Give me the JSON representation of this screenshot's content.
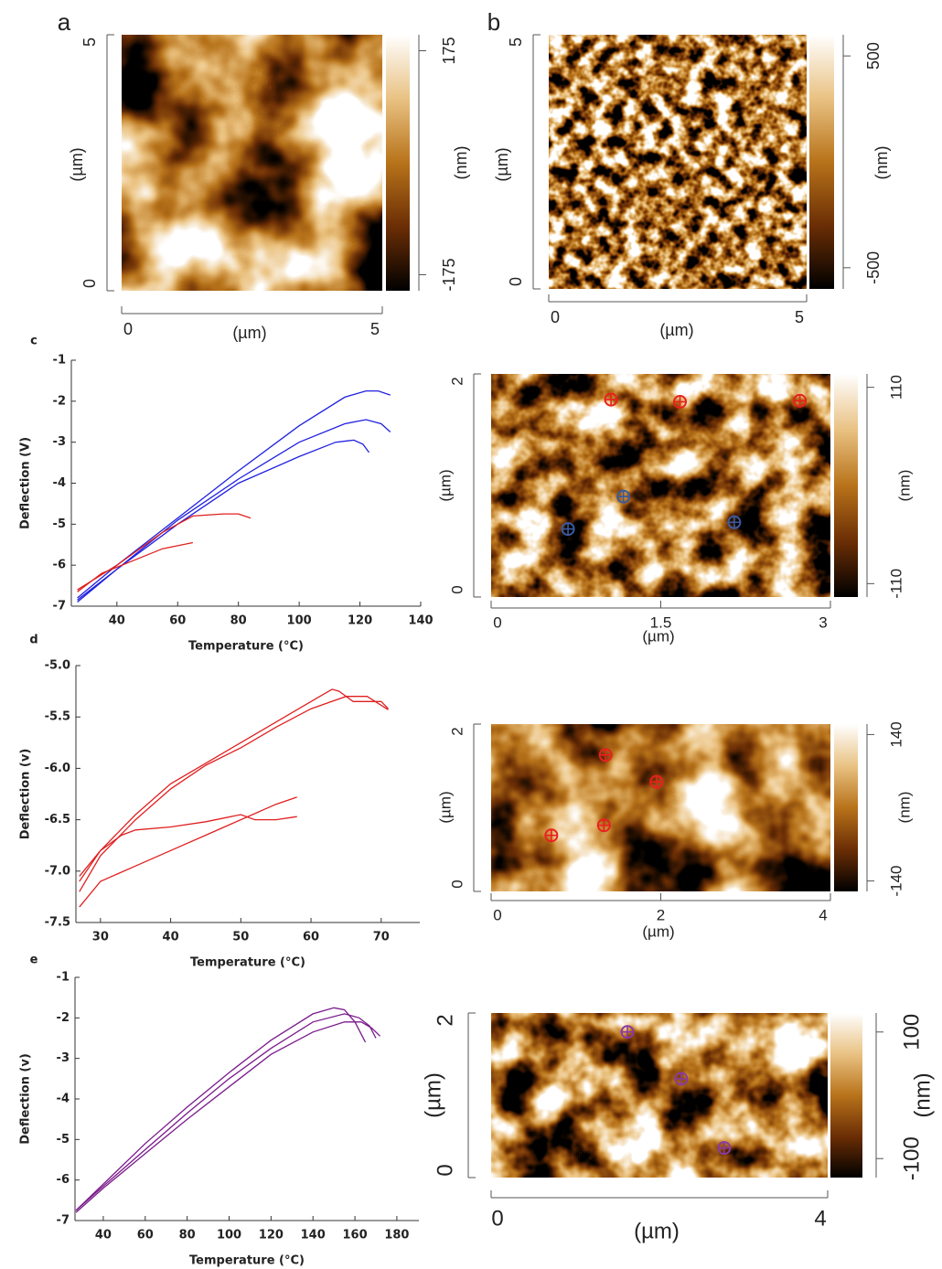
{
  "chart_data": [
    {
      "type": "image",
      "panel": "a",
      "x_label": "(µm)",
      "y_label": "(µm)",
      "xlim": [
        0,
        5
      ],
      "ylim": [
        0,
        5
      ],
      "xticks": [
        0,
        5
      ],
      "yticks": [
        0,
        5
      ],
      "colorbar_label": "(nm)",
      "clim": [
        -200,
        200
      ],
      "cticks": [
        -175,
        175
      ]
    },
    {
      "type": "image",
      "panel": "b",
      "x_label": "(µm)",
      "y_label": "(µm)",
      "xlim": [
        0,
        5
      ],
      "ylim": [
        0,
        5
      ],
      "xticks": [
        0,
        5
      ],
      "yticks": [
        0,
        5
      ],
      "colorbar_label": "(nm)",
      "clim": [
        -600,
        600
      ],
      "cticks": [
        -500,
        500
      ]
    },
    {
      "type": "line",
      "panel": "c",
      "x_label": "Temperature (°C)",
      "y_label": "Deflection (V)",
      "xlim": [
        25,
        140
      ],
      "ylim": [
        -7,
        -1
      ],
      "xticks": [
        40,
        60,
        80,
        100,
        120,
        140
      ],
      "yticks": [
        -1,
        -2,
        -3,
        -4,
        -5,
        -6,
        -7
      ],
      "series": [
        {
          "color": "#2020e0",
          "x": [
            27,
            40,
            60,
            80,
            100,
            115,
            122,
            126,
            130
          ],
          "values": [
            -6.8,
            -6.0,
            -4.85,
            -3.7,
            -2.6,
            -1.9,
            -1.75,
            -1.75,
            -1.85
          ]
        },
        {
          "color": "#2020e0",
          "x": [
            27,
            40,
            60,
            80,
            100,
            115,
            122,
            127,
            130
          ],
          "values": [
            -6.85,
            -6.1,
            -4.9,
            -3.9,
            -3.0,
            -2.55,
            -2.45,
            -2.55,
            -2.75
          ]
        },
        {
          "color": "#2020e0",
          "x": [
            27,
            40,
            60,
            80,
            100,
            112,
            118,
            121,
            123
          ],
          "values": [
            -6.9,
            -6.1,
            -5.0,
            -4.0,
            -3.35,
            -3.0,
            -2.95,
            -3.05,
            -3.25
          ]
        },
        {
          "color": "#e02020",
          "x": [
            27,
            40,
            55,
            65,
            75,
            80,
            84
          ],
          "values": [
            -6.6,
            -6.0,
            -5.2,
            -4.8,
            -4.75,
            -4.75,
            -4.85
          ]
        },
        {
          "color": "#e02020",
          "x": [
            27,
            35,
            45,
            55,
            65
          ],
          "values": [
            -6.65,
            -6.2,
            -5.9,
            -5.6,
            -5.45
          ]
        }
      ]
    },
    {
      "type": "image",
      "x_label": "(µm)",
      "y_label": "(µm)",
      "xlim": [
        0,
        3
      ],
      "ylim": [
        0,
        2
      ],
      "xticks": [
        0,
        1.5,
        3
      ],
      "yticks": [
        0,
        2
      ],
      "colorbar_label": "(nm)",
      "clim": [
        -125,
        125
      ],
      "cticks": [
        -110,
        110
      ],
      "points": [
        {
          "color": "#e82020",
          "x": [
            1.06,
            1.67,
            2.73
          ],
          "y": [
            1.77,
            1.75,
            1.76
          ]
        },
        {
          "color": "#3a5aa0",
          "x": [
            1.17,
            0.68,
            2.15
          ],
          "y": [
            0.9,
            0.61,
            0.67
          ]
        }
      ]
    },
    {
      "type": "line",
      "panel": "d",
      "x_label": "Temperature (°C)",
      "y_label": "Deflection (v)",
      "xlim": [
        26.5,
        75.5
      ],
      "ylim": [
        -7.5,
        -5
      ],
      "xticks": [
        30,
        40,
        50,
        60,
        70
      ],
      "yticks": [
        {
          "value": -5,
          "label": "-5.0"
        },
        -5.5,
        {
          "value": -6,
          "label": "-6.0"
        },
        -6.5,
        {
          "value": -7,
          "label": "-7.0"
        },
        -7.5
      ],
      "series": [
        {
          "color": "#e02020",
          "x": [
            27,
            30,
            35,
            40,
            45,
            50,
            55,
            60,
            63,
            64,
            66,
            68,
            70,
            71
          ],
          "values": [
            -7.05,
            -6.8,
            -6.45,
            -6.15,
            -5.95,
            -5.75,
            -5.55,
            -5.35,
            -5.23,
            -5.25,
            -5.35,
            -5.35,
            -5.35,
            -5.42
          ]
        },
        {
          "color": "#e02020",
          "x": [
            27,
            30,
            35,
            40,
            45,
            50,
            55,
            60,
            65,
            68,
            71
          ],
          "values": [
            -7.2,
            -6.85,
            -6.5,
            -6.2,
            -5.97,
            -5.8,
            -5.6,
            -5.42,
            -5.3,
            -5.3,
            -5.43
          ]
        },
        {
          "color": "#e02020",
          "x": [
            27,
            30,
            33,
            35,
            40,
            45,
            50,
            52,
            55,
            58
          ],
          "values": [
            -7.1,
            -6.8,
            -6.65,
            -6.6,
            -6.57,
            -6.52,
            -6.45,
            -6.5,
            -6.5,
            -6.47
          ]
        },
        {
          "color": "#e02020",
          "x": [
            27,
            30,
            35,
            40,
            45,
            50,
            55,
            58
          ],
          "values": [
            -7.35,
            -7.1,
            -6.95,
            -6.8,
            -6.65,
            -6.5,
            -6.35,
            -6.28
          ]
        }
      ]
    },
    {
      "type": "image",
      "x_label": "(µm)",
      "y_label": "(µm)",
      "xlim": [
        0,
        4
      ],
      "ylim": [
        0,
        2
      ],
      "xticks": [
        0,
        2,
        4
      ],
      "yticks": [
        0,
        2
      ],
      "colorbar_label": "(nm)",
      "clim": [
        -160,
        160
      ],
      "cticks": [
        -140,
        140
      ],
      "points": [
        {
          "color": "#e82020",
          "x": [
            1.35,
            1.95,
            0.71,
            1.33
          ],
          "y": [
            1.63,
            1.31,
            0.67,
            0.79
          ]
        }
      ]
    },
    {
      "type": "line",
      "panel": "e",
      "x_label": "Temperature (°C)",
      "y_label": "Deflection (v)",
      "xlim": [
        26.5,
        190.5
      ],
      "ylim": [
        -7,
        -1
      ],
      "xticks": [
        40,
        60,
        80,
        100,
        120,
        140,
        160,
        180
      ],
      "yticks": [
        -1,
        -2,
        -3,
        -4,
        -5,
        -6,
        -7
      ],
      "series": [
        {
          "color": "#7a1a8c",
          "x": [
            27,
            40,
            60,
            80,
            100,
            120,
            140,
            150,
            155,
            160,
            165
          ],
          "values": [
            -6.75,
            -6.1,
            -5.1,
            -4.2,
            -3.35,
            -2.55,
            -1.9,
            -1.75,
            -1.8,
            -2.1,
            -2.6
          ]
        },
        {
          "color": "#7a1a8c",
          "x": [
            27,
            40,
            60,
            80,
            100,
            120,
            140,
            155,
            162,
            167,
            170
          ],
          "values": [
            -6.75,
            -6.15,
            -5.25,
            -4.35,
            -3.5,
            -2.75,
            -2.1,
            -1.9,
            -2.0,
            -2.2,
            -2.5
          ]
        },
        {
          "color": "#7a1a8c",
          "x": [
            27,
            40,
            60,
            80,
            100,
            120,
            140,
            155,
            163,
            168,
            172
          ],
          "values": [
            -6.8,
            -6.2,
            -5.35,
            -4.5,
            -3.7,
            -2.9,
            -2.35,
            -2.1,
            -2.1,
            -2.25,
            -2.45
          ]
        }
      ]
    },
    {
      "type": "image",
      "x_label": "(µm)",
      "y_label": "(µm)",
      "xlim": [
        0,
        4
      ],
      "ylim": [
        0,
        2
      ],
      "xticks": [
        0,
        4
      ],
      "yticks": [
        0,
        2
      ],
      "colorbar_label": "(nm)",
      "clim": [
        -130,
        130
      ],
      "cticks": [
        -100,
        100
      ],
      "points": [
        {
          "color": "#8a3aa0",
          "x": [
            1.62,
            2.26,
            2.77
          ],
          "y": [
            1.77,
            1.2,
            0.36
          ]
        }
      ]
    }
  ]
}
